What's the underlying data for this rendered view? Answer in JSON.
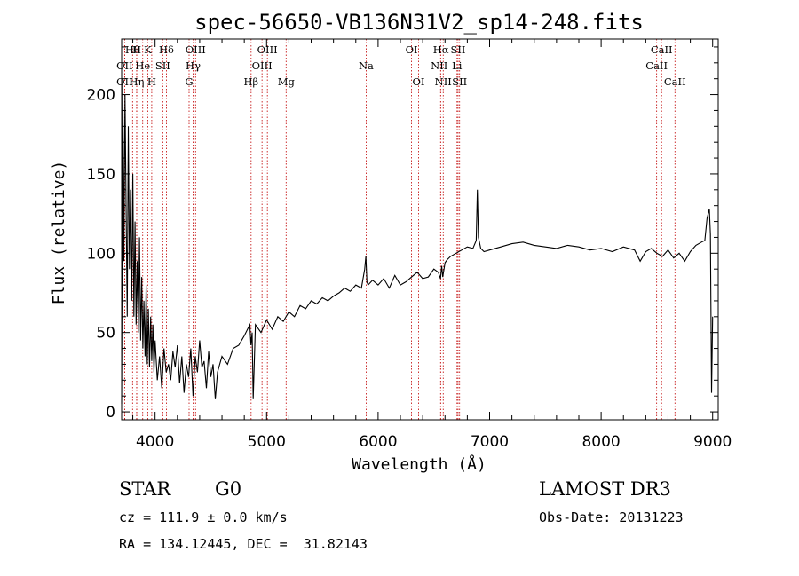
{
  "chart_data": {
    "type": "line",
    "title": "spec-56650-VB136N31V2_sp14-248.fits",
    "xlabel": "Wavelength (Å)",
    "ylabel": "Flux (relative)",
    "xlim": [
      3700,
      9050
    ],
    "ylim": [
      -5,
      235
    ],
    "xticks": [
      4000,
      5000,
      6000,
      7000,
      8000,
      9000
    ],
    "yticks": [
      0,
      50,
      100,
      150,
      200
    ],
    "grid": false,
    "spectral_lines": [
      {
        "label": "Hθ",
        "wave": 3798,
        "row": 0
      },
      {
        "label": "H",
        "wave": 3835,
        "row": 0
      },
      {
        "label": "K",
        "wave": 3934,
        "row": 0
      },
      {
        "label": "Hδ",
        "wave": 4102,
        "row": 0
      },
      {
        "label": "OIII",
        "wave": 4363,
        "row": 0
      },
      {
        "label": "OIII",
        "wave": 5007,
        "row": 0
      },
      {
        "label": "OI",
        "wave": 6300,
        "row": 0
      },
      {
        "label": "Hα",
        "wave": 6563,
        "row": 0
      },
      {
        "label": "SII",
        "wave": 6717,
        "row": 0
      },
      {
        "label": "CaII",
        "wave": 8542,
        "row": 0
      },
      {
        "label": "OII",
        "wave": 3727,
        "row": 1
      },
      {
        "label": "He",
        "wave": 3889,
        "row": 1
      },
      {
        "label": "SII",
        "wave": 4069,
        "row": 1
      },
      {
        "label": "Hγ",
        "wave": 4341,
        "row": 1
      },
      {
        "label": "OIII",
        "wave": 4959,
        "row": 1
      },
      {
        "label": "Na",
        "wave": 5893,
        "row": 1
      },
      {
        "label": "NII",
        "wave": 6548,
        "row": 1
      },
      {
        "label": "Li",
        "wave": 6708,
        "row": 1
      },
      {
        "label": "CaII",
        "wave": 8498,
        "row": 1
      },
      {
        "label": "OII",
        "wave": 3727,
        "row": 2
      },
      {
        "label": "Hη",
        "wave": 3835,
        "row": 2
      },
      {
        "label": "H",
        "wave": 3970,
        "row": 2
      },
      {
        "label": "G",
        "wave": 4305,
        "row": 2
      },
      {
        "label": "Hβ",
        "wave": 4861,
        "row": 2
      },
      {
        "label": "Mg",
        "wave": 5175,
        "row": 2
      },
      {
        "label": "OI",
        "wave": 6363,
        "row": 2
      },
      {
        "label": "NII",
        "wave": 6584,
        "row": 2
      },
      {
        "label": "SII",
        "wave": 6731,
        "row": 2
      },
      {
        "label": "CaII",
        "wave": 8662,
        "row": 2
      }
    ],
    "series": [
      {
        "name": "flux",
        "x": [
          3700,
          3710,
          3720,
          3730,
          3740,
          3750,
          3760,
          3770,
          3780,
          3790,
          3800,
          3810,
          3820,
          3830,
          3840,
          3850,
          3860,
          3870,
          3880,
          3890,
          3900,
          3910,
          3920,
          3930,
          3940,
          3950,
          3960,
          3970,
          3980,
          3990,
          4000,
          4020,
          4040,
          4060,
          4080,
          4100,
          4120,
          4140,
          4160,
          4180,
          4200,
          4220,
          4240,
          4260,
          4280,
          4300,
          4320,
          4340,
          4360,
          4380,
          4400,
          4420,
          4440,
          4460,
          4480,
          4500,
          4520,
          4540,
          4560,
          4580,
          4600,
          4650,
          4700,
          4750,
          4800,
          4850,
          4860,
          4870,
          4880,
          4900,
          4950,
          5000,
          5050,
          5100,
          5150,
          5200,
          5250,
          5300,
          5350,
          5400,
          5450,
          5500,
          5550,
          5600,
          5650,
          5700,
          5750,
          5800,
          5850,
          5880,
          5890,
          5900,
          5910,
          5950,
          6000,
          6050,
          6100,
          6150,
          6200,
          6250,
          6300,
          6350,
          6400,
          6450,
          6500,
          6540,
          6560,
          6570,
          6580,
          6600,
          6620,
          6650,
          6700,
          6750,
          6800,
          6850,
          6880,
          6890,
          6900,
          6920,
          6950,
          7000,
          7100,
          7200,
          7300,
          7400,
          7500,
          7600,
          7700,
          7800,
          7900,
          8000,
          8100,
          8200,
          8300,
          8350,
          8400,
          8450,
          8500,
          8550,
          8600,
          8650,
          8700,
          8750,
          8800,
          8850,
          8900,
          8930,
          8950,
          8970,
          8980,
          8990,
          9000
        ],
        "y": [
          5,
          210,
          95,
          200,
          130,
          60,
          180,
          90,
          140,
          70,
          150,
          60,
          120,
          55,
          95,
          50,
          110,
          45,
          85,
          40,
          70,
          35,
          80,
          30,
          65,
          28,
          60,
          32,
          55,
          25,
          45,
          20,
          35,
          15,
          40,
          25,
          30,
          20,
          38,
          28,
          42,
          18,
          35,
          12,
          30,
          22,
          40,
          10,
          35,
          25,
          45,
          28,
          32,
          15,
          38,
          22,
          30,
          8,
          25,
          30,
          35,
          30,
          40,
          42,
          48,
          55,
          42,
          50,
          8,
          55,
          50,
          58,
          52,
          60,
          57,
          63,
          60,
          67,
          65,
          70,
          68,
          72,
          70,
          73,
          75,
          78,
          76,
          80,
          78,
          90,
          98,
          82,
          80,
          83,
          80,
          84,
          78,
          86,
          80,
          82,
          85,
          88,
          84,
          85,
          90,
          88,
          84,
          92,
          85,
          94,
          96,
          98,
          100,
          102,
          104,
          103,
          108,
          140,
          110,
          103,
          101,
          102,
          104,
          106,
          107,
          105,
          104,
          103,
          105,
          104,
          102,
          103,
          101,
          104,
          102,
          95,
          101,
          103,
          100,
          98,
          102,
          97,
          100,
          95,
          101,
          105,
          107,
          108,
          122,
          128,
          112,
          12,
          60
        ]
      }
    ]
  },
  "info": {
    "object_class": "STAR",
    "subclass": "G0",
    "survey": "LAMOST DR3",
    "cz": "cz = 111.9 ± 0.0 km/s",
    "obs_date": "Obs-Date: 20131223",
    "coords": "RA = 134.12445, DEC =  31.82143"
  }
}
